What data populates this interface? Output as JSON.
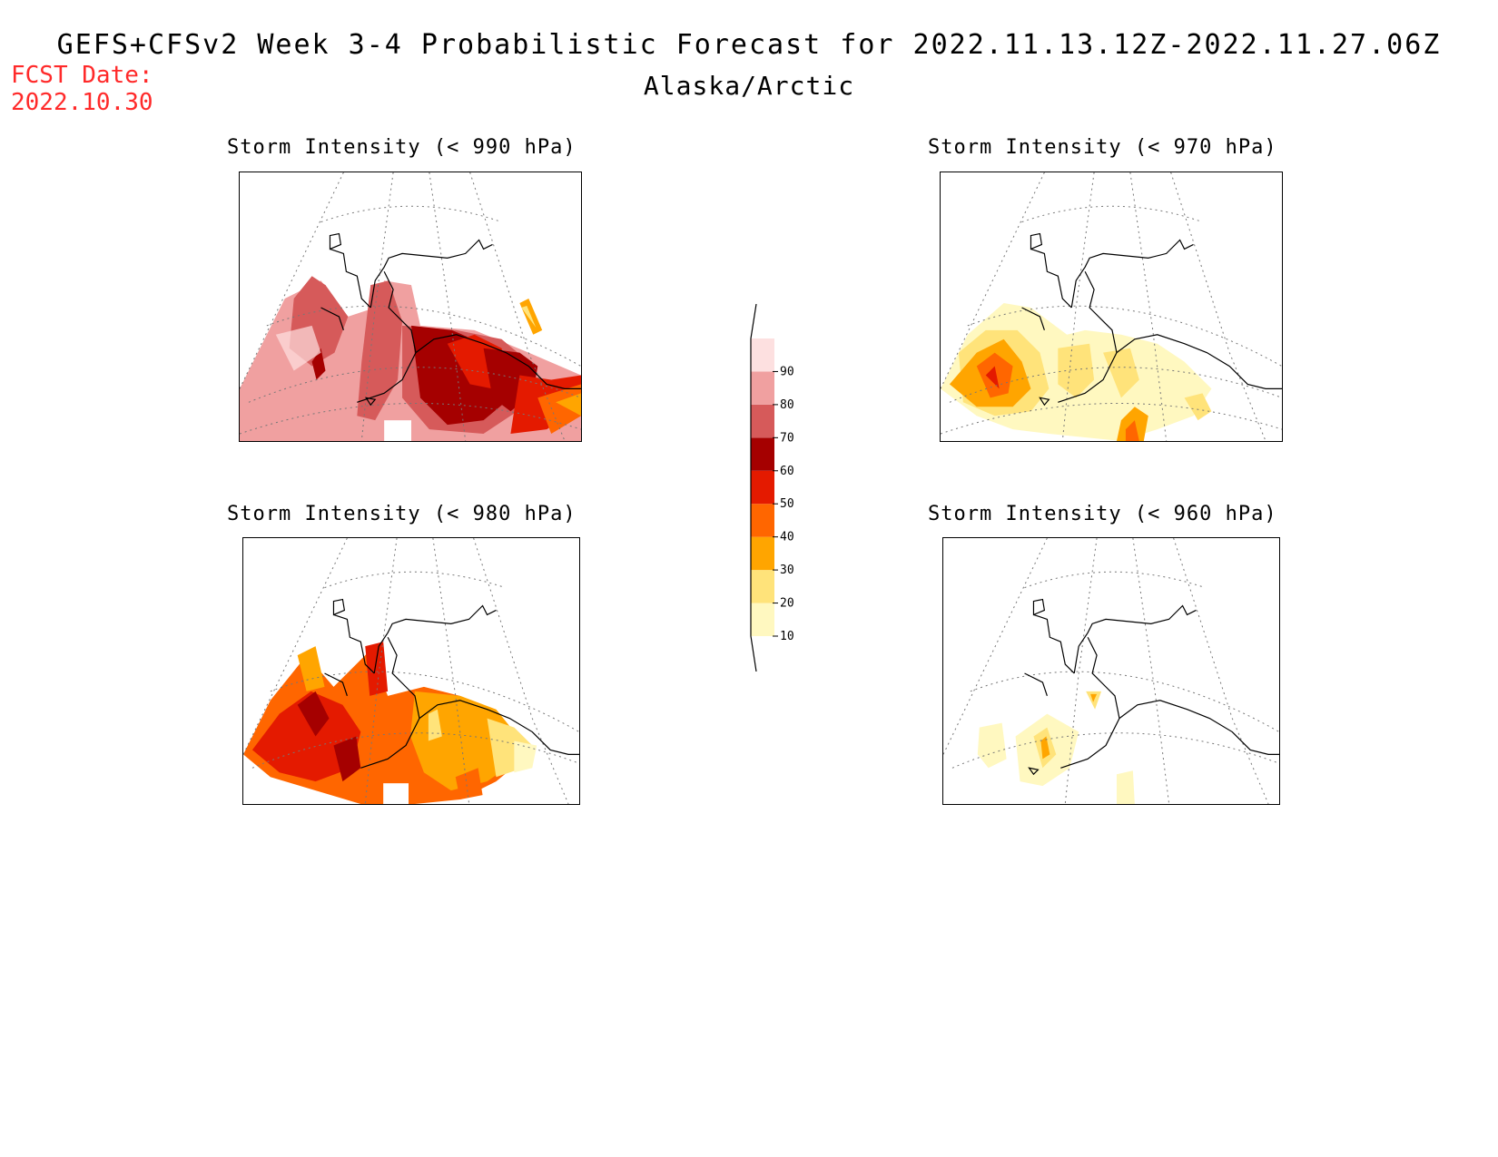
{
  "header": {
    "title": "GEFS+CFSv2 Week 3-4 Probabilistic Forecast for 2022.11.13.12Z-2022.11.27.06Z",
    "subtitle": "Alaska/Arctic",
    "fcst_label": "FCST Date:",
    "fcst_date": "2022.10.30"
  },
  "panels": [
    {
      "id": "p990",
      "title": "Storm Intensity (< 990 hPa)"
    },
    {
      "id": "p970",
      "title": "Storm Intensity (< 970 hPa)"
    },
    {
      "id": "p980",
      "title": "Storm Intensity (< 980 hPa)"
    },
    {
      "id": "p960",
      "title": "Storm Intensity (< 960 hPa)"
    }
  ],
  "legend": {
    "levels": [
      "10",
      "20",
      "30",
      "40",
      "50",
      "60",
      "70",
      "80",
      "90"
    ],
    "colors": [
      "#fff8c0",
      "#ffe37a",
      "#ffa500",
      "#ff6600",
      "#e41a00",
      "#a50000",
      "#d65a5a",
      "#f0a0a0",
      "#fde0e0"
    ]
  }
}
